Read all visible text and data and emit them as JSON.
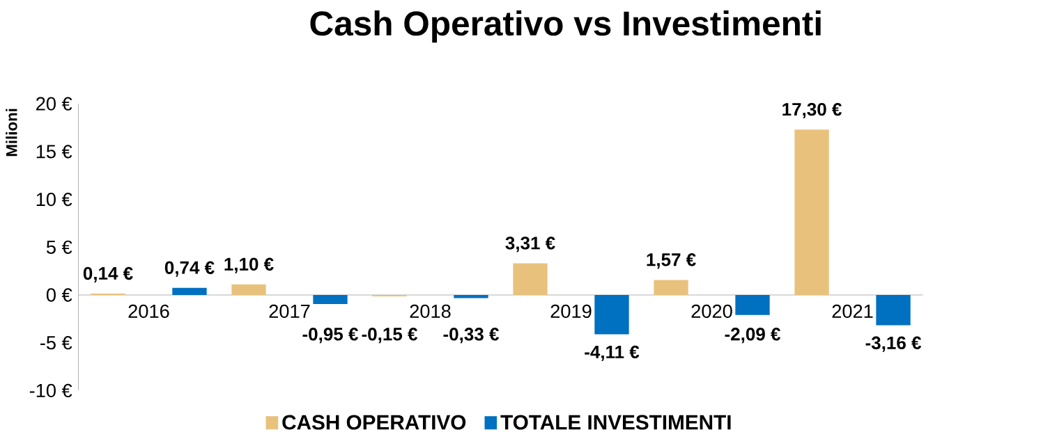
{
  "chart_data": {
    "type": "bar",
    "title": "Cash Operativo vs Investimenti",
    "ylabel": "Milioni",
    "categories": [
      "2016",
      "2017",
      "2018",
      "2019",
      "2020",
      "2021"
    ],
    "series": [
      {
        "name": "CASH OPERATIVO",
        "color": "#e8c27c",
        "values": [
          0.14,
          1.1,
          -0.15,
          3.31,
          1.57,
          17.3
        ],
        "value_labels": [
          "0,14 €",
          "1,10 €",
          "-0,15 €",
          "3,31 €",
          "1,57 €",
          "17,30 €"
        ]
      },
      {
        "name": "TOTALE INVESTIMENTI",
        "color": "#0070c0",
        "values": [
          0.74,
          -0.95,
          -0.33,
          -4.11,
          -2.09,
          -3.16
        ],
        "value_labels": [
          "0,74 €",
          "-0,95 €",
          "-0,33 €",
          "-4,11 €",
          "-2,09 €",
          "-3,16 €"
        ]
      }
    ],
    "ylim": [
      -10,
      20
    ],
    "yticks": [
      {
        "value": -10,
        "label": "-10 €"
      },
      {
        "value": -5,
        "label": "-5 €"
      },
      {
        "value": 0,
        "label": "0 €"
      },
      {
        "value": 5,
        "label": "5 €"
      },
      {
        "value": 10,
        "label": "10 €"
      },
      {
        "value": 15,
        "label": "15 €"
      },
      {
        "value": 20,
        "label": "20 €"
      }
    ],
    "legend": "bottom"
  }
}
